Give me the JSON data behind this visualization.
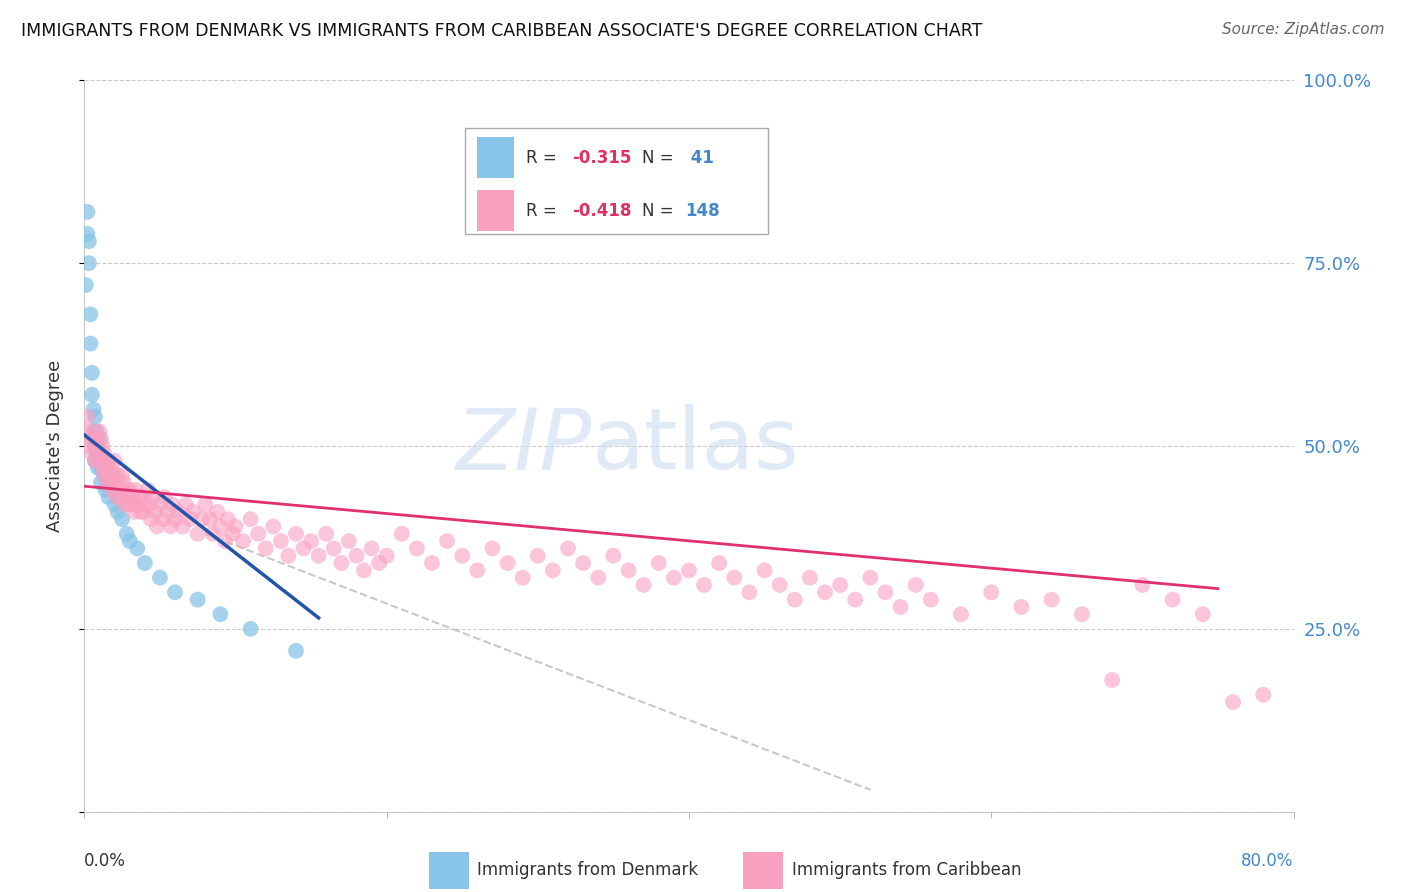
{
  "title": "IMMIGRANTS FROM DENMARK VS IMMIGRANTS FROM CARIBBEAN ASSOCIATE'S DEGREE CORRELATION CHART",
  "source": "Source: ZipAtlas.com",
  "ylabel": "Associate's Degree",
  "xmin": 0.0,
  "xmax": 0.8,
  "ymin": 0.0,
  "ymax": 1.0,
  "denmark_R": -0.315,
  "denmark_N": 41,
  "caribbean_R": -0.418,
  "caribbean_N": 148,
  "denmark_color": "#88c4e8",
  "caribbean_color": "#f9a0c0",
  "denmark_line_color": "#2255aa",
  "caribbean_line_color": "#e03070",
  "legend_denmark_label": "Immigrants from Denmark",
  "legend_caribbean_label": "Immigrants from Caribbean",
  "denmark_x": [
    0.001,
    0.002,
    0.002,
    0.003,
    0.003,
    0.004,
    0.004,
    0.005,
    0.005,
    0.006,
    0.006,
    0.007,
    0.007,
    0.007,
    0.008,
    0.008,
    0.009,
    0.009,
    0.01,
    0.01,
    0.011,
    0.011,
    0.012,
    0.013,
    0.014,
    0.015,
    0.016,
    0.018,
    0.02,
    0.022,
    0.025,
    0.028,
    0.03,
    0.035,
    0.04,
    0.05,
    0.06,
    0.075,
    0.09,
    0.11,
    0.14
  ],
  "denmark_y": [
    0.72,
    0.82,
    0.79,
    0.78,
    0.75,
    0.68,
    0.64,
    0.6,
    0.57,
    0.55,
    0.52,
    0.54,
    0.5,
    0.48,
    0.52,
    0.49,
    0.5,
    0.47,
    0.51,
    0.48,
    0.47,
    0.45,
    0.48,
    0.46,
    0.44,
    0.46,
    0.43,
    0.44,
    0.42,
    0.41,
    0.4,
    0.38,
    0.37,
    0.36,
    0.34,
    0.32,
    0.3,
    0.29,
    0.27,
    0.25,
    0.22
  ],
  "denmark_line_x0": 0.0,
  "denmark_line_x1": 0.155,
  "denmark_line_y0": 0.515,
  "denmark_line_y1": 0.265,
  "caribbean_line_x0": 0.0,
  "caribbean_line_x1": 0.75,
  "caribbean_line_y0": 0.445,
  "caribbean_line_y1": 0.305,
  "dashed_line_x0": 0.08,
  "dashed_line_x1": 0.52,
  "dashed_line_y0": 0.38,
  "dashed_line_y1": 0.03,
  "caribbean_x": [
    0.001,
    0.002,
    0.003,
    0.004,
    0.005,
    0.006,
    0.007,
    0.007,
    0.008,
    0.008,
    0.009,
    0.01,
    0.01,
    0.011,
    0.011,
    0.012,
    0.012,
    0.013,
    0.013,
    0.014,
    0.015,
    0.015,
    0.016,
    0.016,
    0.017,
    0.018,
    0.018,
    0.019,
    0.02,
    0.02,
    0.021,
    0.022,
    0.022,
    0.023,
    0.024,
    0.025,
    0.025,
    0.026,
    0.027,
    0.028,
    0.029,
    0.03,
    0.031,
    0.032,
    0.033,
    0.034,
    0.035,
    0.036,
    0.037,
    0.038,
    0.039,
    0.04,
    0.042,
    0.043,
    0.044,
    0.045,
    0.047,
    0.048,
    0.05,
    0.052,
    0.053,
    0.055,
    0.057,
    0.058,
    0.06,
    0.062,
    0.065,
    0.067,
    0.07,
    0.072,
    0.075,
    0.078,
    0.08,
    0.083,
    0.085,
    0.088,
    0.09,
    0.093,
    0.095,
    0.098,
    0.1,
    0.105,
    0.11,
    0.115,
    0.12,
    0.125,
    0.13,
    0.135,
    0.14,
    0.145,
    0.15,
    0.155,
    0.16,
    0.165,
    0.17,
    0.175,
    0.18,
    0.185,
    0.19,
    0.195,
    0.2,
    0.21,
    0.22,
    0.23,
    0.24,
    0.25,
    0.26,
    0.27,
    0.28,
    0.29,
    0.3,
    0.31,
    0.32,
    0.33,
    0.34,
    0.35,
    0.36,
    0.37,
    0.38,
    0.39,
    0.4,
    0.41,
    0.42,
    0.43,
    0.44,
    0.45,
    0.46,
    0.47,
    0.48,
    0.49,
    0.5,
    0.51,
    0.52,
    0.53,
    0.54,
    0.55,
    0.56,
    0.58,
    0.6,
    0.62,
    0.64,
    0.66,
    0.68,
    0.7,
    0.72,
    0.74,
    0.76,
    0.78
  ],
  "caribbean_y": [
    0.52,
    0.54,
    0.5,
    0.51,
    0.49,
    0.52,
    0.5,
    0.48,
    0.51,
    0.48,
    0.5,
    0.52,
    0.49,
    0.51,
    0.48,
    0.5,
    0.47,
    0.49,
    0.46,
    0.48,
    0.47,
    0.45,
    0.48,
    0.46,
    0.45,
    0.47,
    0.44,
    0.46,
    0.48,
    0.45,
    0.44,
    0.46,
    0.43,
    0.45,
    0.43,
    0.46,
    0.43,
    0.45,
    0.42,
    0.44,
    0.42,
    0.44,
    0.42,
    0.43,
    0.41,
    0.44,
    0.42,
    0.43,
    0.41,
    0.43,
    0.41,
    0.42,
    0.44,
    0.42,
    0.4,
    0.43,
    0.41,
    0.39,
    0.42,
    0.4,
    0.43,
    0.41,
    0.39,
    0.42,
    0.4,
    0.41,
    0.39,
    0.42,
    0.4,
    0.41,
    0.38,
    0.4,
    0.42,
    0.4,
    0.38,
    0.41,
    0.39,
    0.37,
    0.4,
    0.38,
    0.39,
    0.37,
    0.4,
    0.38,
    0.36,
    0.39,
    0.37,
    0.35,
    0.38,
    0.36,
    0.37,
    0.35,
    0.38,
    0.36,
    0.34,
    0.37,
    0.35,
    0.33,
    0.36,
    0.34,
    0.35,
    0.38,
    0.36,
    0.34,
    0.37,
    0.35,
    0.33,
    0.36,
    0.34,
    0.32,
    0.35,
    0.33,
    0.36,
    0.34,
    0.32,
    0.35,
    0.33,
    0.31,
    0.34,
    0.32,
    0.33,
    0.31,
    0.34,
    0.32,
    0.3,
    0.33,
    0.31,
    0.29,
    0.32,
    0.3,
    0.31,
    0.29,
    0.32,
    0.3,
    0.28,
    0.31,
    0.29,
    0.27,
    0.3,
    0.28,
    0.29,
    0.27,
    0.18,
    0.31,
    0.29,
    0.27,
    0.15,
    0.16
  ]
}
